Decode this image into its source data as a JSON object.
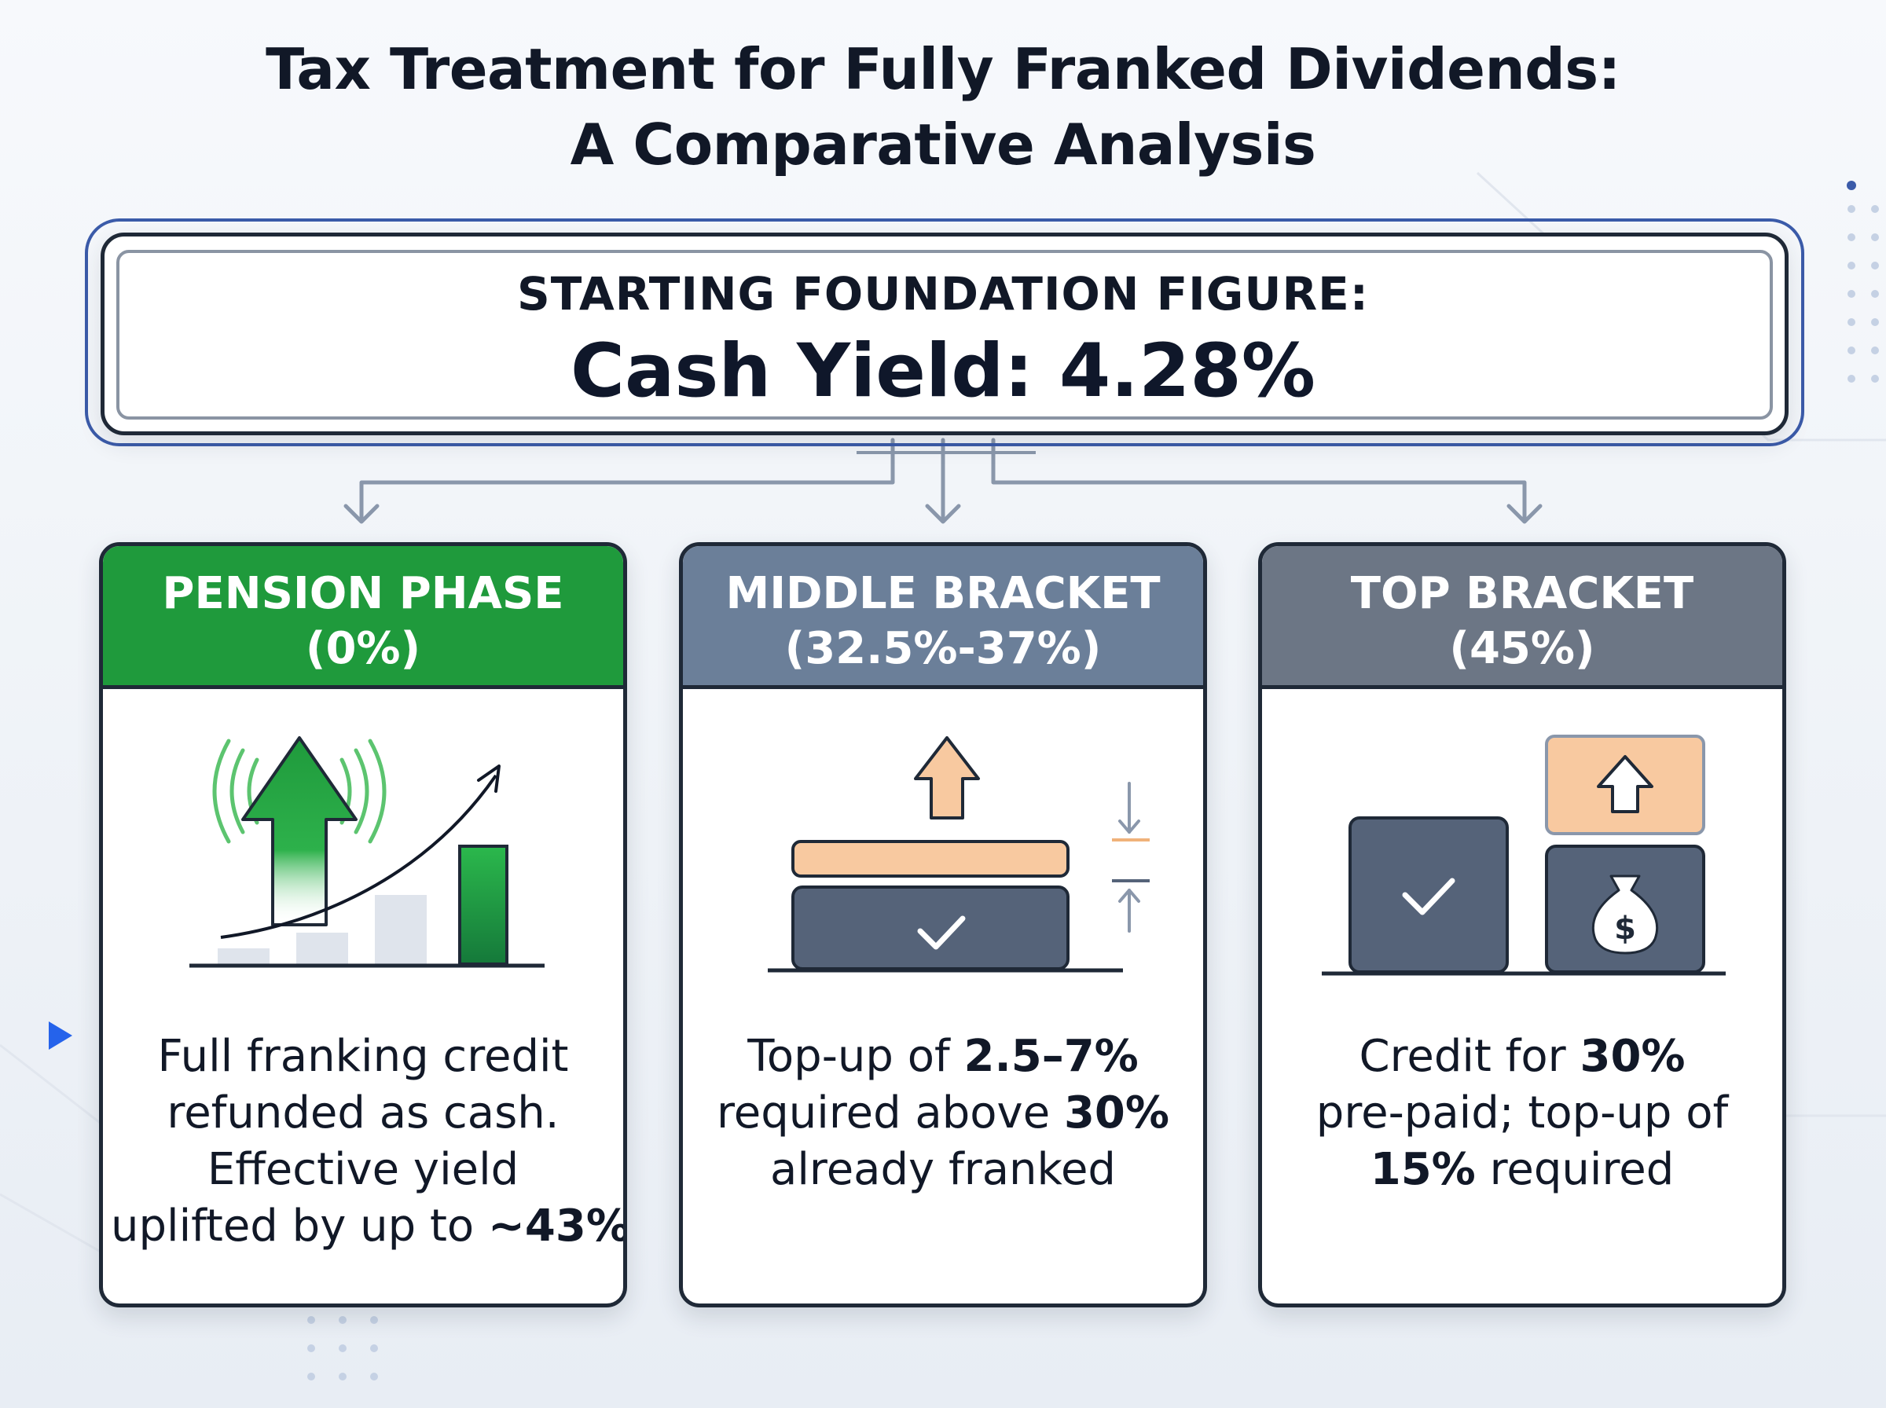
{
  "title": {
    "line1": "Tax Treatment for Fully Franked Dividends:",
    "line2": "A Comparative Analysis"
  },
  "foundation": {
    "label": "STARTING FOUNDATION FIGURE:",
    "value": "Cash Yield: 4.28%"
  },
  "colors": {
    "pension_header": "#1f9a3c",
    "middle_header": "#6b7f99",
    "top_header": "#6c7685",
    "accent_blue": "#3b5ba9",
    "peach": "#f8c9a0",
    "slate": "#556379"
  },
  "cards": [
    {
      "name": "pension",
      "heading1": "PENSION PHASE",
      "heading2": "(0%)",
      "icon": "growth-arrow-chart-icon",
      "lines": [
        {
          "pre": "Full franking credit",
          "bold": "",
          "post": ""
        },
        {
          "pre": "refunded as cash.",
          "bold": "",
          "post": ""
        },
        {
          "pre": "Effective yield",
          "bold": "",
          "post": ""
        },
        {
          "pre": "uplifted by up to ",
          "bold": "~43%",
          "post": ""
        }
      ]
    },
    {
      "name": "middle",
      "heading1": "MIDDLE BRACKET",
      "heading2": "(32.5%-37%)",
      "icon": "top-up-layer-icon",
      "lines": [
        {
          "pre": "Top-up of ",
          "bold": "2.5–7%",
          "post": ""
        },
        {
          "pre": "required above ",
          "bold": "30%",
          "post": ""
        },
        {
          "pre": "already franked",
          "bold": "",
          "post": ""
        }
      ]
    },
    {
      "name": "top",
      "heading1": "TOP BRACKET",
      "heading2": "(45%)",
      "icon": "credit-and-money-bag-icon",
      "lines": [
        {
          "pre": "Credit for ",
          "bold": "30%",
          "post": ""
        },
        {
          "pre": "pre-paid; top-up of",
          "bold": "",
          "post": ""
        },
        {
          "pre": "",
          "bold": "15%",
          "post": " required"
        }
      ]
    }
  ]
}
